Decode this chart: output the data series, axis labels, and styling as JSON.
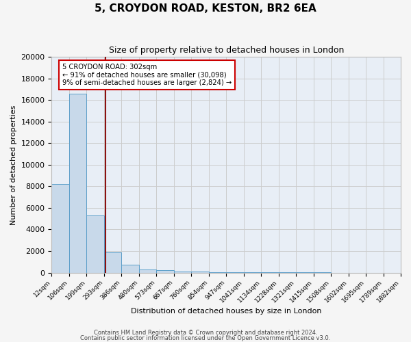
{
  "title": "5, CROYDON ROAD, KESTON, BR2 6EA",
  "subtitle": "Size of property relative to detached houses in London",
  "xlabel": "Distribution of detached houses by size in London",
  "ylabel": "Number of detached properties",
  "bar_color": "#c8d9ea",
  "bar_edge_color": "#5b9ec9",
  "background_color": "#e8eef6",
  "fig_background_color": "#f5f5f5",
  "grid_color": "#cccccc",
  "bin_edges": [
    12,
    106,
    199,
    293,
    386,
    480,
    573,
    667,
    760,
    854,
    947,
    1041,
    1134,
    1228,
    1321,
    1415,
    1508,
    1602,
    1695,
    1789,
    1882
  ],
  "bar_heights": [
    8200,
    16600,
    5300,
    1850,
    750,
    300,
    200,
    100,
    100,
    50,
    30,
    20,
    15,
    10,
    8,
    5,
    4,
    3,
    2,
    2
  ],
  "property_size": 302,
  "property_line_color": "#8b1010",
  "annotation_line1": "5 CROYDON ROAD: 302sqm",
  "annotation_line2": "← 91% of detached houses are smaller (30,098)",
  "annotation_line3": "9% of semi-detached houses are larger (2,824) →",
  "annotation_box_color": "#ffffff",
  "annotation_box_edge": "#cc0000",
  "ylim": [
    0,
    20000
  ],
  "yticks": [
    0,
    2000,
    4000,
    6000,
    8000,
    10000,
    12000,
    14000,
    16000,
    18000,
    20000
  ],
  "footer_line1": "Contains HM Land Registry data © Crown copyright and database right 2024.",
  "footer_line2": "Contains public sector information licensed under the Open Government Licence v3.0."
}
